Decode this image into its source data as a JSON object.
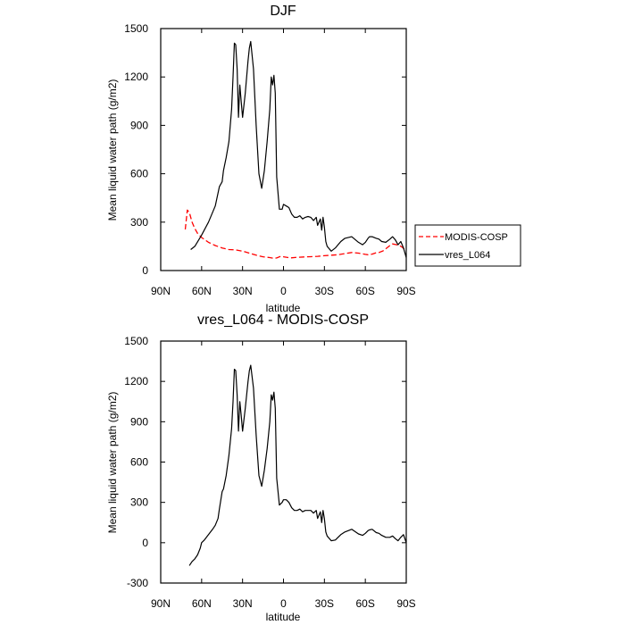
{
  "chart_data": [
    {
      "type": "line",
      "title": "DJF",
      "xlabel": "latitude",
      "ylabel": "Mean liquid water path (g/m2)",
      "xlim": [
        90,
        -90
      ],
      "ylim": [
        0,
        1500
      ],
      "x_tick_values": [
        90,
        60,
        30,
        0,
        -30,
        -60,
        -90
      ],
      "x_tick_labels": [
        "90N",
        "60N",
        "30N",
        "0",
        "30S",
        "60S",
        "90S"
      ],
      "y_ticks": [
        0,
        300,
        600,
        900,
        1200,
        1500
      ],
      "y_tick_labels": [
        "0",
        "300",
        "600",
        "900",
        "1200",
        "1500"
      ],
      "legend": {
        "position": "right",
        "entries": [
          "MODIS-COSP",
          "vres_L064"
        ]
      },
      "series": [
        {
          "name": "MODIS-COSP",
          "style": "dashed",
          "color": "#ff0000",
          "x": [
            72,
            70.5,
            69,
            67,
            65,
            63,
            60,
            55,
            50,
            45,
            40,
            35,
            30,
            25,
            20,
            15,
            10,
            7,
            5,
            2,
            0,
            -5,
            -10,
            -15,
            -20,
            -25,
            -30,
            -35,
            -40,
            -45,
            -50,
            -55,
            -60,
            -62,
            -65,
            -68,
            -70,
            -73,
            -75,
            -78,
            -80,
            -83,
            -85,
            -87,
            -89
          ],
          "y": [
            255,
            375,
            360,
            300,
            260,
            230,
            205,
            175,
            155,
            140,
            130,
            128,
            120,
            108,
            95,
            85,
            80,
            75,
            78,
            88,
            85,
            78,
            82,
            84,
            86,
            88,
            92,
            95,
            98,
            105,
            112,
            108,
            100,
            98,
            102,
            110,
            112,
            122,
            135,
            155,
            165,
            160,
            155,
            145,
            130
          ]
        },
        {
          "name": "vres_L064",
          "style": "solid",
          "color": "#000000",
          "x": [
            68,
            65,
            60,
            55,
            50,
            47,
            45,
            44,
            42,
            40,
            38,
            37,
            36,
            35,
            34,
            33,
            32,
            31,
            30,
            28,
            26,
            25,
            24,
            22,
            20,
            18,
            16,
            14,
            12,
            10,
            9,
            8,
            7,
            6,
            5,
            3,
            1,
            0,
            -2,
            -4,
            -6,
            -8,
            -10,
            -12,
            -14,
            -16,
            -18,
            -20,
            -22,
            -24,
            -25,
            -27,
            -28,
            -29,
            -30,
            -31,
            -32,
            -35,
            -38,
            -40,
            -42,
            -45,
            -50,
            -55,
            -58,
            -60,
            -62,
            -63,
            -65,
            -68,
            -70,
            -72,
            -75,
            -78,
            -80,
            -82,
            -84,
            -86,
            -88,
            -90
          ],
          "y": [
            130,
            150,
            220,
            300,
            400,
            520,
            550,
            620,
            700,
            800,
            1000,
            1200,
            1410,
            1400,
            1250,
            950,
            1150,
            1050,
            950,
            1100,
            1300,
            1380,
            1420,
            1250,
            900,
            600,
            510,
            620,
            800,
            1000,
            1200,
            1150,
            1210,
            1100,
            580,
            380,
            380,
            410,
            400,
            390,
            350,
            330,
            330,
            340,
            320,
            330,
            335,
            330,
            310,
            330,
            280,
            320,
            250,
            330,
            270,
            180,
            150,
            120,
            140,
            160,
            180,
            200,
            210,
            175,
            160,
            175,
            200,
            210,
            210,
            200,
            195,
            180,
            175,
            195,
            210,
            190,
            160,
            180,
            140,
            80
          ]
        }
      ]
    },
    {
      "type": "line",
      "title": "vres_L064 - MODIS-COSP",
      "xlabel": "latitude",
      "ylabel": "Mean liquid water path (g/m2)",
      "xlim": [
        90,
        -90
      ],
      "ylim": [
        -300,
        1500
      ],
      "x_tick_values": [
        90,
        60,
        30,
        0,
        -30,
        -60,
        -90
      ],
      "x_tick_labels": [
        "90N",
        "60N",
        "30N",
        "0",
        "30S",
        "60S",
        "90S"
      ],
      "y_ticks": [
        -300,
        0,
        300,
        600,
        900,
        1200,
        1500
      ],
      "y_tick_labels": [
        "-300",
        "0",
        "300",
        "600",
        "900",
        "1200",
        "1500"
      ],
      "series": [
        {
          "name": "vres_L064 - MODIS-COSP",
          "style": "solid",
          "color": "#000000",
          "x": [
            69,
            67,
            65,
            63,
            61,
            60,
            58,
            55,
            52,
            50,
            48,
            47,
            45,
            44,
            42,
            40,
            38,
            37,
            36,
            35,
            34,
            33,
            32,
            31,
            30,
            28,
            26,
            25,
            24,
            22,
            20,
            18,
            16,
            14,
            12,
            10,
            9,
            8,
            7,
            6,
            5,
            3,
            1,
            0,
            -2,
            -4,
            -6,
            -8,
            -10,
            -12,
            -14,
            -16,
            -18,
            -20,
            -22,
            -24,
            -25,
            -27,
            -28,
            -29,
            -30,
            -31,
            -32,
            -35,
            -38,
            -40,
            -42,
            -45,
            -50,
            -55,
            -58,
            -60,
            -62,
            -63,
            -65,
            -68,
            -70,
            -72,
            -75,
            -78,
            -80,
            -82,
            -84,
            -86,
            -88,
            -90
          ],
          "y": [
            -170,
            -140,
            -120,
            -90,
            -40,
            0,
            20,
            60,
            100,
            130,
            180,
            250,
            380,
            400,
            500,
            650,
            850,
            1050,
            1290,
            1280,
            1100,
            830,
            1050,
            950,
            830,
            1000,
            1200,
            1280,
            1320,
            1150,
            800,
            500,
            420,
            540,
            700,
            900,
            1100,
            1060,
            1120,
            1000,
            480,
            280,
            300,
            320,
            320,
            300,
            260,
            240,
            240,
            250,
            230,
            240,
            240,
            240,
            220,
            240,
            180,
            230,
            150,
            240,
            180,
            80,
            50,
            15,
            20,
            40,
            60,
            80,
            100,
            65,
            55,
            70,
            90,
            95,
            100,
            75,
            70,
            55,
            40,
            40,
            50,
            30,
            15,
            40,
            60,
            0
          ]
        }
      ]
    }
  ]
}
